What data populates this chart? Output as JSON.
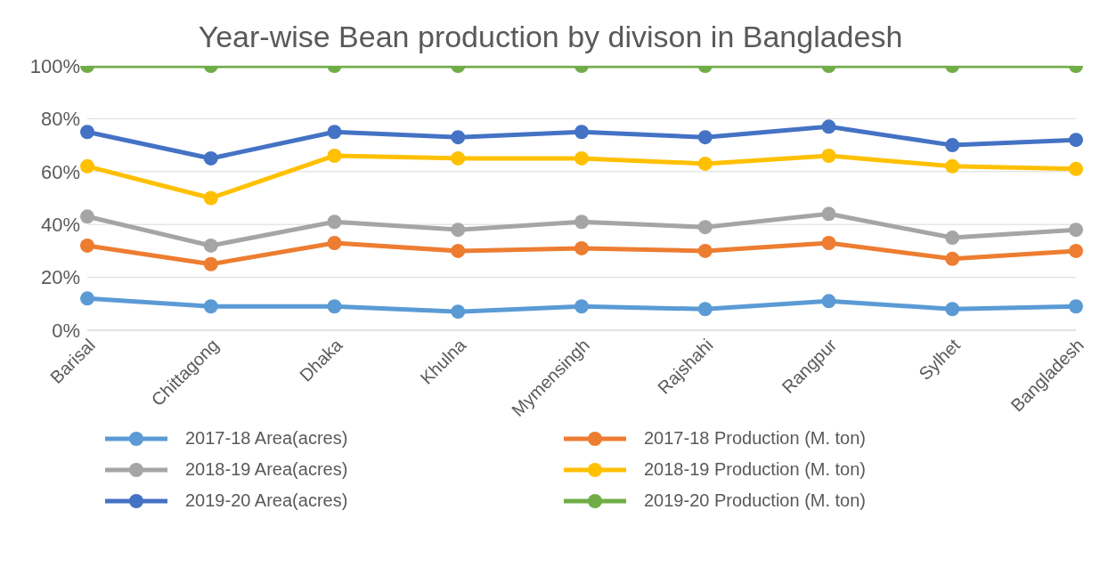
{
  "chart_data": {
    "type": "line",
    "title": "Year-wise Bean production by divison in Bangladesh",
    "categories": [
      "Barisal",
      "Chittagong",
      "Dhaka",
      "Khulna",
      "Mymensingh",
      "Rajshahi",
      "Rangpur",
      "Sylhet",
      "Bangladesh"
    ],
    "series": [
      {
        "name": "2017-18 Area(acres)",
        "color": "#5b9bd5",
        "values": [
          12,
          9,
          9,
          7,
          9,
          8,
          11,
          8,
          9
        ]
      },
      {
        "name": "2017-18 Production (M. ton)",
        "color": "#ed7d31",
        "values": [
          32,
          25,
          33,
          30,
          31,
          30,
          33,
          27,
          30
        ]
      },
      {
        "name": "2018-19 Area(acres)",
        "color": "#a5a5a5",
        "values": [
          43,
          32,
          41,
          38,
          41,
          39,
          44,
          35,
          38
        ]
      },
      {
        "name": "2018-19 Production (M. ton)",
        "color": "#ffc000",
        "values": [
          62,
          50,
          66,
          65,
          65,
          63,
          66,
          62,
          61
        ]
      },
      {
        "name": "2019-20 Area(acres)",
        "color": "#4472c4",
        "values": [
          75,
          65,
          75,
          73,
          75,
          73,
          77,
          70,
          72
        ]
      },
      {
        "name": "2019-20 Production (M. ton)",
        "color": "#70ad47",
        "values": [
          100,
          100,
          100,
          100,
          100,
          100,
          100,
          100,
          100
        ]
      }
    ],
    "ylim": [
      0,
      100
    ],
    "yticks": [
      {
        "value": 0,
        "label": "0%"
      },
      {
        "value": 20,
        "label": "20%"
      },
      {
        "value": 40,
        "label": "40%"
      },
      {
        "value": 60,
        "label": "60%"
      },
      {
        "value": 80,
        "label": "80%"
      },
      {
        "value": 100,
        "label": "100%"
      }
    ],
    "grid": "y",
    "legend": "bottom",
    "marker": "circle",
    "line_style": "solid"
  }
}
